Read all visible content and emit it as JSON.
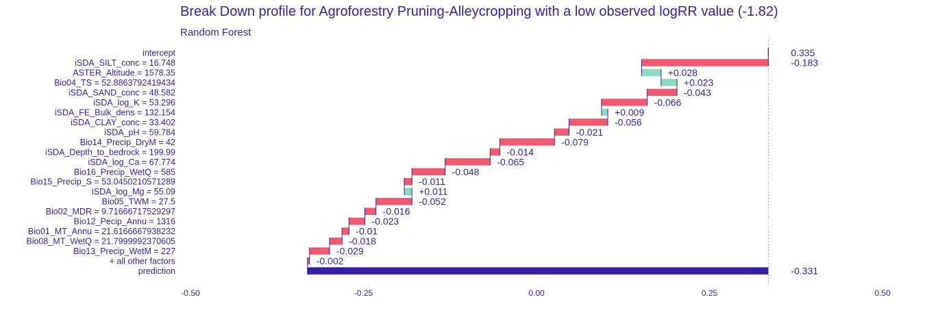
{
  "chart_data": {
    "type": "waterfall",
    "title": "Break Down profile for Agroforestry Pruning-Alleycropping with a low observed logRR value (-1.82)",
    "subtitle": "Random Forest",
    "xlim": [
      -0.5,
      0.5
    ],
    "x_ticks": [
      -0.5,
      -0.25,
      0,
      0.25,
      0.5
    ],
    "x_tick_labels": [
      "-0.50",
      "-0.25",
      "0.00",
      "0.25",
      "0.50"
    ],
    "grid": false,
    "reference_line": 0.335,
    "colors": {
      "title": "#371ea3",
      "negative": "#f05a71",
      "positive": "#8bdcbe",
      "prediction": "#371ea3",
      "connector": "#371ea3",
      "label_text": "#371ea3",
      "reference_line": "#8f8fbf"
    },
    "rows": [
      {
        "label": "intercept",
        "kind": "intercept",
        "start": 0.335,
        "end": 0.335,
        "value_label": "0.335"
      },
      {
        "label": "iSDA_SILT_conc = 16.748",
        "kind": "step",
        "start": 0.335,
        "end": 0.152,
        "value_label": "-0.183"
      },
      {
        "label": "ASTER_Altitude = 1578.35",
        "kind": "step",
        "start": 0.152,
        "end": 0.18,
        "value_label": "+0.028"
      },
      {
        "label": "Bio04_TS = 52.8863792419434",
        "kind": "step",
        "start": 0.18,
        "end": 0.203,
        "value_label": "+0.023"
      },
      {
        "label": "iSDA_SAND_conc = 48.582",
        "kind": "step",
        "start": 0.203,
        "end": 0.16,
        "value_label": "-0.043"
      },
      {
        "label": "iSDA_log_K = 53.296",
        "kind": "step",
        "start": 0.16,
        "end": 0.094,
        "value_label": "-0.066"
      },
      {
        "label": "iSDA_FE_Bulk_dens = 132.154",
        "kind": "step",
        "start": 0.094,
        "end": 0.103,
        "value_label": "+0.009"
      },
      {
        "label": "iSDA_CLAY_conc = 33.402",
        "kind": "step",
        "start": 0.103,
        "end": 0.047,
        "value_label": "-0.056"
      },
      {
        "label": "iSDA_pH = 59.784",
        "kind": "step",
        "start": 0.047,
        "end": 0.026,
        "value_label": "-0.021"
      },
      {
        "label": "Bio14_Precip_DryM = 42",
        "kind": "step",
        "start": 0.026,
        "end": -0.053,
        "value_label": "-0.079"
      },
      {
        "label": "iSDA_Depth_to_bedrock = 199.99",
        "kind": "step",
        "start": -0.053,
        "end": -0.067,
        "value_label": "-0.014"
      },
      {
        "label": "iSDA_log_Ca = 67.774",
        "kind": "step",
        "start": -0.067,
        "end": -0.132,
        "value_label": "-0.065"
      },
      {
        "label": "Bio16_Precip_WetQ = 585",
        "kind": "step",
        "start": -0.132,
        "end": -0.18,
        "value_label": "-0.048"
      },
      {
        "label": "Bio15_Precip_S = 53.0450210571289",
        "kind": "step",
        "start": -0.18,
        "end": -0.191,
        "value_label": "-0.011"
      },
      {
        "label": "iSDA_log_Mg = 55.09",
        "kind": "step",
        "start": -0.191,
        "end": -0.18,
        "value_label": "+0.011"
      },
      {
        "label": "Bio05_TWM = 27.5",
        "kind": "step",
        "start": -0.18,
        "end": -0.232,
        "value_label": "-0.052"
      },
      {
        "label": "Bio02_MDR = 9.71666717529297",
        "kind": "step",
        "start": -0.232,
        "end": -0.248,
        "value_label": "-0.016"
      },
      {
        "label": "Bio12_Pecip_Annu = 1316",
        "kind": "step",
        "start": -0.248,
        "end": -0.271,
        "value_label": "-0.023"
      },
      {
        "label": "Bio01_MT_Annu = 21.6166667938232",
        "kind": "step",
        "start": -0.271,
        "end": -0.281,
        "value_label": "-0.01"
      },
      {
        "label": "Bio08_MT_WetQ = 21.7999992370605",
        "kind": "step",
        "start": -0.281,
        "end": -0.299,
        "value_label": "-0.018"
      },
      {
        "label": "Bio13_Precip_WetM = 227",
        "kind": "step",
        "start": -0.299,
        "end": -0.328,
        "value_label": "-0.029"
      },
      {
        "label": "+ all other factors",
        "kind": "step",
        "start": -0.328,
        "end": -0.331,
        "value_label": "-0.002"
      },
      {
        "label": "prediction",
        "kind": "prediction",
        "start": -0.331,
        "end": 0.335,
        "value_label": "-0.331"
      }
    ]
  }
}
